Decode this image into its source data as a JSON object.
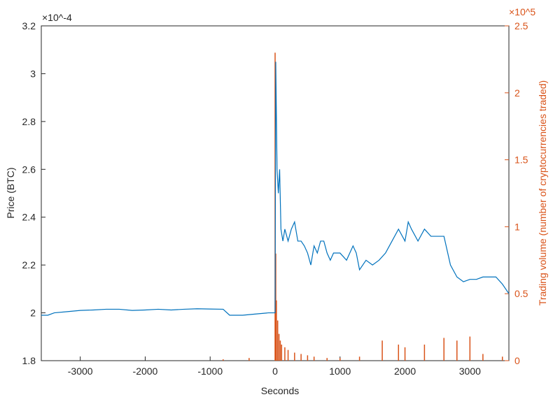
{
  "chart_data": {
    "type": "line",
    "xlabel": "Seconds",
    "ylabel": "Price (BTC)",
    "y2label": "Trading volume (number of cryptocurrencies traded)",
    "yexponent": "×10^-4",
    "y2exponent": "×10^5",
    "xlim": [
      -3600,
      3600
    ],
    "xticks": [
      -3000,
      -2000,
      -1000,
      0,
      1000,
      2000,
      3000
    ],
    "ylim": [
      1.8,
      3.2
    ],
    "yticks": [
      1.8,
      2,
      2.2,
      2.4,
      2.6,
      2.8,
      3,
      3.2
    ],
    "y2lim": [
      0,
      2.5
    ],
    "y2ticks": [
      0,
      0.5,
      1,
      1.5,
      2,
      2.5
    ],
    "series": [
      {
        "name": "Price",
        "type": "line",
        "color": "#0072bd",
        "x": [
          -3600,
          -3500,
          -3400,
          -3200,
          -3000,
          -2800,
          -2600,
          -2400,
          -2200,
          -2000,
          -1800,
          -1600,
          -1400,
          -1200,
          -1000,
          -800,
          -700,
          -500,
          -300,
          -100,
          -20,
          0,
          10,
          30,
          50,
          70,
          90,
          120,
          150,
          200,
          250,
          300,
          350,
          400,
          450,
          500,
          550,
          600,
          650,
          700,
          750,
          800,
          850,
          900,
          1000,
          1100,
          1200,
          1250,
          1300,
          1400,
          1500,
          1600,
          1700,
          1800,
          1900,
          2000,
          2050,
          2100,
          2200,
          2300,
          2400,
          2500,
          2600,
          2700,
          2800,
          2900,
          3000,
          3100,
          3200,
          3300,
          3400,
          3500,
          3600
        ],
        "values": [
          1.99,
          1.99,
          2.0,
          2.005,
          2.01,
          2.012,
          2.015,
          2.015,
          2.01,
          2.012,
          2.015,
          2.012,
          2.015,
          2.017,
          2.016,
          2.015,
          1.99,
          1.99,
          1.995,
          2.0,
          2.0,
          2.0,
          3.05,
          2.6,
          2.5,
          2.6,
          2.35,
          2.3,
          2.35,
          2.3,
          2.35,
          2.38,
          2.3,
          2.3,
          2.28,
          2.25,
          2.2,
          2.28,
          2.25,
          2.3,
          2.3,
          2.25,
          2.22,
          2.25,
          2.25,
          2.22,
          2.28,
          2.25,
          2.18,
          2.22,
          2.2,
          2.22,
          2.25,
          2.3,
          2.35,
          2.3,
          2.38,
          2.35,
          2.3,
          2.35,
          2.32,
          2.32,
          2.32,
          2.2,
          2.15,
          2.13,
          2.14,
          2.14,
          2.15,
          2.15,
          2.15,
          2.12,
          2.08
        ]
      },
      {
        "name": "Trading volume",
        "type": "bar",
        "axis": "y2",
        "color": "#d95319",
        "x": [
          -800,
          -400,
          0,
          10,
          20,
          40,
          60,
          80,
          100,
          150,
          200,
          300,
          400,
          500,
          600,
          800,
          1000,
          1300,
          1650,
          1900,
          2000,
          2300,
          2600,
          2800,
          3000,
          3200,
          3500
        ],
        "values": [
          0.01,
          0.02,
          2.3,
          0.8,
          0.45,
          0.3,
          0.2,
          0.15,
          0.12,
          0.1,
          0.08,
          0.06,
          0.05,
          0.04,
          0.03,
          0.02,
          0.02,
          0.03,
          0.15,
          0.12,
          0.1,
          0.12,
          0.17,
          0.15,
          0.18,
          0.05,
          0.03
        ]
      }
    ]
  }
}
